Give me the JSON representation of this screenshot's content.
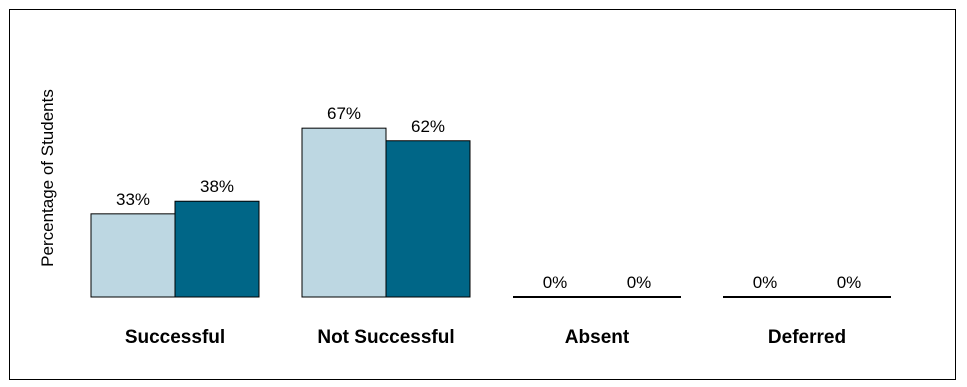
{
  "chart_data": {
    "type": "bar",
    "title": "",
    "xlabel": "",
    "ylabel": "Percentage of Students",
    "ylim": [
      0,
      100
    ],
    "grid": false,
    "legend": "none",
    "categories": [
      "Successful",
      "Not Successful",
      "Absent",
      "Deferred"
    ],
    "series": [
      {
        "values": [
          33,
          67,
          0,
          0
        ],
        "color": "#bdd7e2",
        "labels": [
          "33%",
          "67%",
          "0%",
          "0%"
        ]
      },
      {
        "values": [
          38,
          62,
          0,
          0
        ],
        "color": "#006687",
        "labels": [
          "38%",
          "62%",
          "0%",
          "0%"
        ]
      }
    ]
  }
}
